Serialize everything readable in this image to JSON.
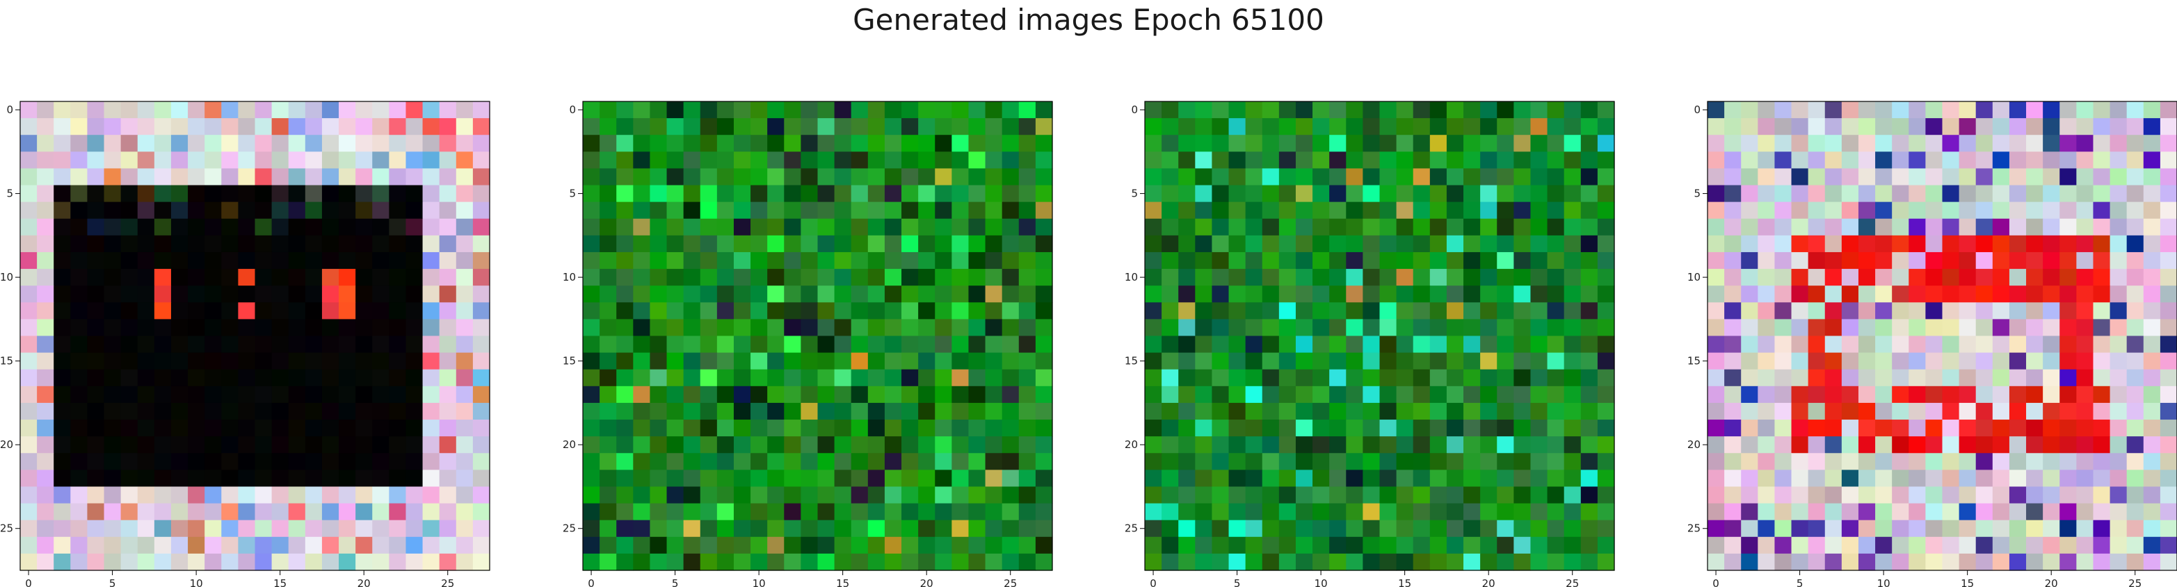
{
  "title": "Generated images Epoch 65100",
  "chart_data": {
    "type": "heatmap",
    "grid_size": [
      28,
      28
    ],
    "panel_count": 4,
    "xticks": [
      0,
      5,
      10,
      15,
      20,
      25
    ],
    "yticks": [
      0,
      5,
      10,
      15,
      20,
      25
    ],
    "xlim": [
      -0.5,
      27.5
    ],
    "ylim": [
      27.5,
      -0.5
    ],
    "grid": false,
    "panels": [
      {
        "name": "",
        "style": "black-square-pastel-border",
        "colors": {
          "center": "#050505",
          "border_base": "#c8c0d8",
          "accent": "#f04a2a"
        }
      },
      {
        "name": "",
        "style": "green-noise",
        "colors": {
          "base": "#1a8a25",
          "dark": "#0c3d10",
          "accent": "#2ee05a"
        }
      },
      {
        "name": "",
        "style": "green-noise",
        "colors": {
          "base": "#1a8a2a",
          "dark": "#0d4a18",
          "accent": "#30e8c0"
        }
      },
      {
        "name": "",
        "style": "red-band-pastel",
        "colors": {
          "base": "#d0b8c8",
          "band": "#e51c1c",
          "accent": "#6a2ca8"
        }
      }
    ]
  }
}
